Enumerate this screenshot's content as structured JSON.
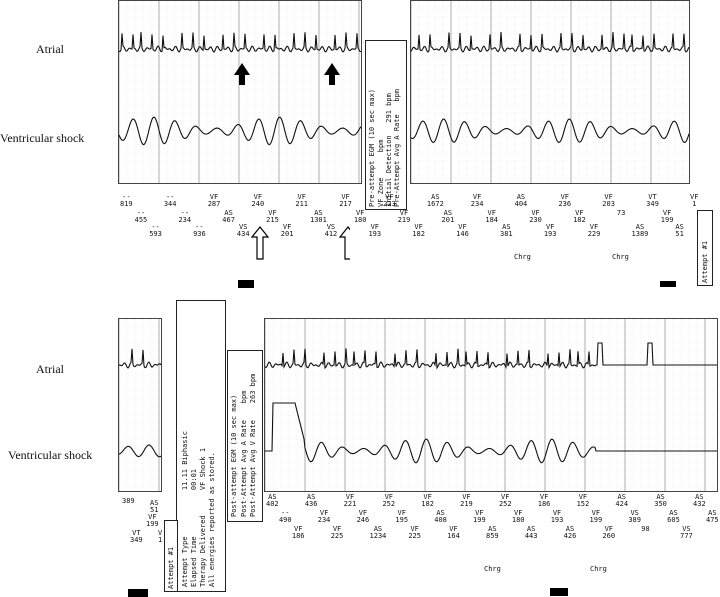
{
  "labels": {
    "atrial": "Atrial",
    "ventricular": "Ventricular shock"
  },
  "top": {
    "markers_row1": [
      "--\n819",
      "--\n455",
      "--\n593",
      "--\n344",
      "--\n234",
      "--\n936",
      "VF\n287",
      "AS\n467",
      "VS\n434",
      "VF\n240",
      "VF\n215",
      "VF\n201",
      "VF\n211",
      "AS\n1301",
      "VS\n412",
      "VF\n217",
      "VF\n180",
      "VF\n193",
      "VF\n223",
      "VF\n219",
      "VF\n182",
      "AS\n1672",
      "AS\n201",
      "VF\n146",
      "VF\n234",
      "VF\n184",
      "AS\n381",
      "AS\n404",
      "VF\n230",
      "VF\n193",
      "VF\n236",
      "VF\n182",
      "VF\n229",
      "VF\n203",
      "73",
      "AS\n1389",
      "VT\n349",
      "VF\n199",
      "AS\n51",
      "VF\n1"
    ],
    "info_box": [
      "VF Zone      bpm",
      "Initial Detection   291 bpm",
      "Pre-Attempt Avg A Rate   bpm",
      "Pre-Attempt Avg V Rate   291"
    ],
    "info_title": "Pre-attempt EGM (10 sec max)",
    "chrg": [
      "Chrg",
      "Chrg"
    ],
    "attempt": "Attempt #1"
  },
  "bottom": {
    "left_markers": [
      "389",
      "VF\n199",
      "VT\n349",
      "AS\n51",
      "V\n1"
    ],
    "therapy_box": [
      "Attempt #1",
      "Attempt Type           11.11 Biphasic",
      "Elapsed Time           00:01",
      "Therapy Delivered      VF Shock 1",
      "All energies reported as stored."
    ],
    "post_box_title": "Post-attempt EGM (10 sec max)",
    "post_box": [
      "Post-Attempt Avg A Rate    bpm",
      "Post-Attempt Avg V Rate    263 bpm"
    ],
    "markers_row": [
      "AS\n402",
      "--\n490",
      "VF\n186",
      "AS\n436",
      "VF\n234",
      "VF\n225",
      "VF\n221",
      "VF\n246",
      "AS\n1234",
      "VF\n252",
      "VF\n195",
      "VF\n225",
      "VF\n182",
      "AS\n408",
      "VF\n164",
      "VF\n219",
      "VF\n199",
      "AS\n859",
      "VF\n252",
      "VF\n180",
      "AS\n443",
      "VF\n186",
      "VF\n193",
      "AS\n426",
      "VF\n152",
      "VF\n199",
      "VF\n260",
      "AS\n424",
      "VS\n389",
      "98",
      "AS\n350",
      "AS\n605",
      "VS\n777",
      "AS\n432",
      "AS\n475"
    ],
    "chrg": [
      "Chrg",
      "Chrg"
    ]
  }
}
